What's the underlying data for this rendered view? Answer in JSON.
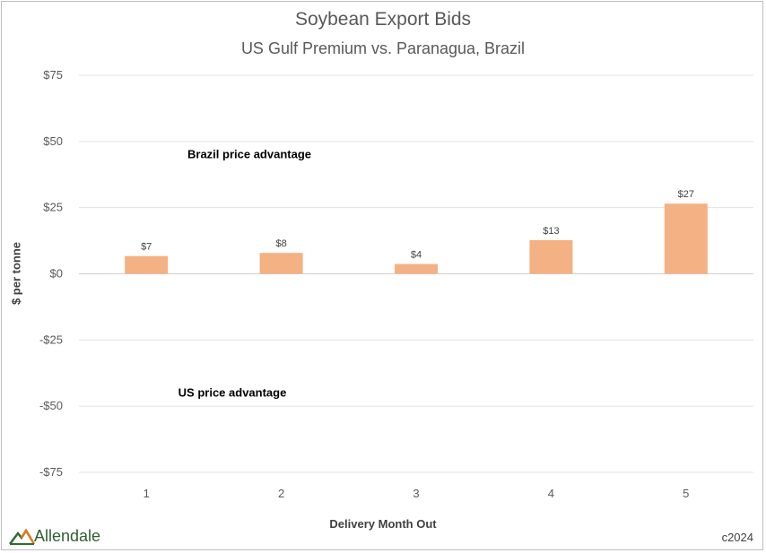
{
  "chart_data": {
    "type": "bar",
    "title": "Soybean Export Bids",
    "subtitle": "US Gulf Premium vs. Paranagua, Brazil",
    "xlabel": "Delivery Month Out",
    "ylabel": "$ per tonne",
    "categories": [
      "1",
      "2",
      "3",
      "4",
      "5"
    ],
    "values": [
      6.7,
      7.9,
      3.7,
      12.7,
      26.5
    ],
    "data_labels": [
      "$7",
      "$8",
      "$4",
      "$13",
      "$27"
    ],
    "ylim": [
      -75,
      75
    ],
    "yticks": [
      75,
      50,
      25,
      0,
      -25,
      -50,
      -75
    ],
    "ytick_labels": [
      "$75",
      "$50",
      "$25",
      "$0",
      "-$25",
      "-$50",
      "-$75"
    ],
    "grid": true,
    "bar_color": "#f4b183",
    "annotations": [
      {
        "text": "Brazil price advantage",
        "y": 45
      },
      {
        "text": "US price advantage",
        "y": -45
      }
    ]
  },
  "footer": {
    "logo_text": "Allendale",
    "copyright": "c2024"
  }
}
